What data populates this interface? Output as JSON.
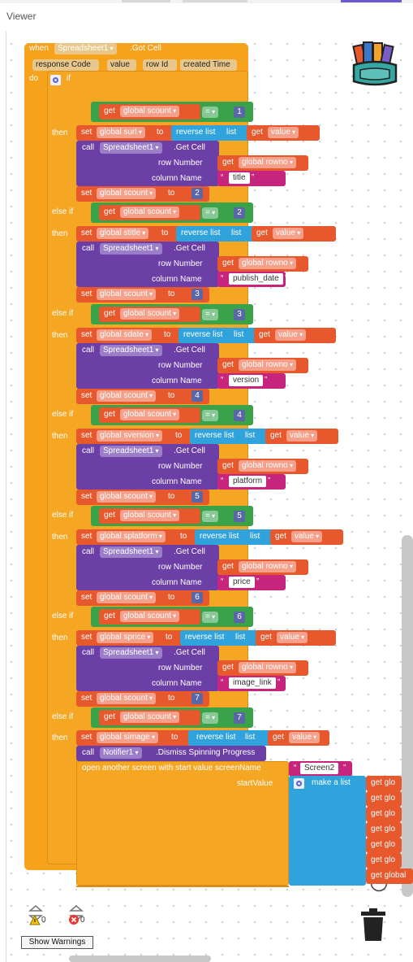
{
  "window": {
    "title": "Viewer"
  },
  "event": {
    "when": "when",
    "component": "Spreadsheet1",
    "event_name": ".Got Cell",
    "params": [
      "response Code",
      "value",
      "row Id",
      "created Time"
    ],
    "do": "do",
    "if": "if",
    "then": "then",
    "else_if": "else if"
  },
  "words": {
    "get": "get",
    "set": "set",
    "to": "to",
    "call": "call",
    "reverse_list": "reverse list",
    "list": "list",
    "row_number": "row Number",
    "column_name": "column Name",
    "get_cell": ".Get Cell",
    "eq": "=",
    "value": "value",
    "rownum_var": "global rowno",
    "scount_var": "global scount",
    "spreadsheet": "Spreadsheet1"
  },
  "branches": [
    {
      "check": "1",
      "var": "global surl",
      "column": "title",
      "next": "2"
    },
    {
      "check": "2",
      "var": "global stitle",
      "column": "publish_date",
      "next": "3"
    },
    {
      "check": "3",
      "var": "global sdate",
      "column": "version",
      "next": "4"
    },
    {
      "check": "4",
      "var": "global sversion",
      "column": "platform",
      "next": "5"
    },
    {
      "check": "5",
      "var": "global splatform",
      "column": "price",
      "next": "6"
    },
    {
      "check": "6",
      "var": "global sprice",
      "column": "image_link",
      "next": "7"
    }
  ],
  "last_branch": {
    "check": "7",
    "var": "global simage",
    "notifier_call": "Notifier1",
    "notifier_method": ".Dismiss Spinning Progress",
    "open_screen": "open another screen with start value  screenName",
    "screen_name": "Screen2",
    "start_value": "startValue",
    "make_list": "make a list",
    "items": [
      "get glo",
      "get glo",
      "get glo",
      "get glo",
      "get glo",
      "get glo",
      "get global"
    ]
  },
  "warnings": {
    "warn_count": "0",
    "error_count": "0",
    "button": "Show Warnings"
  },
  "colors": {
    "event": "#f7a21b",
    "control": "#f5a623",
    "math": "#2a7cd1",
    "variable": "#e8582d",
    "component": "#6b3fa6",
    "text": "#c7247e",
    "logic": "#3aa349",
    "list": "#31a3dc"
  },
  "icons": [
    "backpack-icon",
    "gear-icon",
    "locate-icon",
    "zoom-in-icon",
    "zoom-out-icon",
    "trash-icon",
    "warning-icon",
    "error-icon"
  ]
}
